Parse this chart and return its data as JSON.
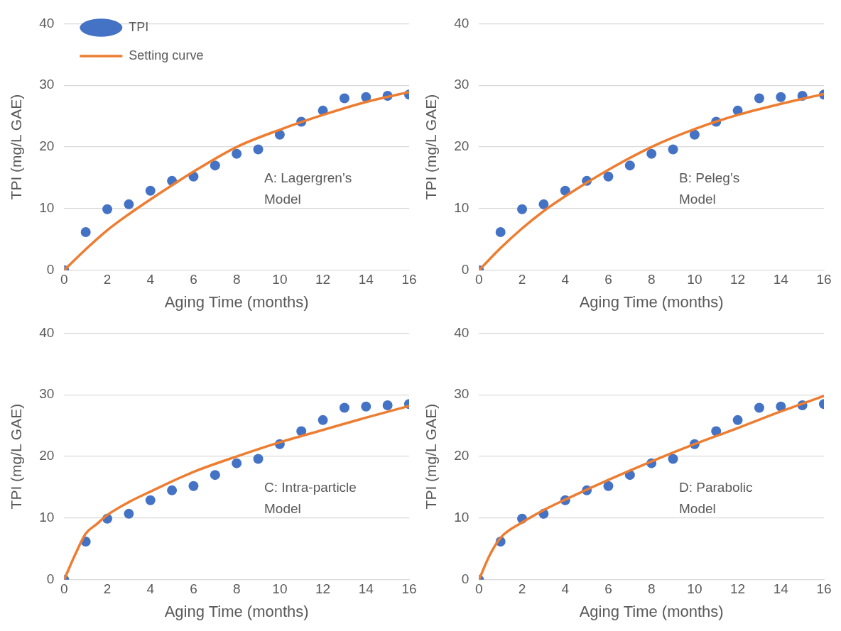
{
  "chart_data": [
    {
      "type": "scatter",
      "xlabel": "Aging Time (months)",
      "ylabel": "TPI (mg/L GAE)",
      "xlim": [
        0,
        16
      ],
      "xticks": [
        0,
        2,
        4,
        6,
        8,
        10,
        12,
        14,
        16
      ],
      "ylim": [
        0,
        40
      ],
      "yticks": [
        0,
        10,
        20,
        30,
        40
      ],
      "grid": "y",
      "legend": "top left",
      "annotations": [
        "A: Lagergren’s Model"
      ],
      "series": [
        {
          "name": "TPI",
          "type": "scatter",
          "marker": "circle",
          "color": "#4472c4",
          "x": [
            0,
            1,
            2,
            3,
            4,
            5,
            6,
            7,
            8,
            9,
            10,
            11,
            12,
            13,
            14,
            15,
            16
          ],
          "values": [
            0,
            6.2,
            9.9,
            10.7,
            12.9,
            14.5,
            15.2,
            17,
            18.9,
            19.6,
            22,
            24.1,
            25.9,
            27.9,
            28.1,
            28.3,
            28.5
          ]
        },
        {
          "name": "Setting curve",
          "type": "line",
          "marker": "none",
          "line_style": "solid",
          "color": "#ed7d31",
          "x": [
            0,
            1,
            2,
            3,
            4,
            6,
            8,
            10,
            12,
            14,
            16
          ],
          "values": [
            0,
            3.4,
            6.5,
            9.1,
            11.5,
            16,
            20,
            22.8,
            25.2,
            27.3,
            28.9
          ]
        }
      ]
    },
    {
      "type": "scatter",
      "xlabel": "Aging Time (months)",
      "ylabel": "TPI (mg/L GAE)",
      "xlim": [
        0,
        16
      ],
      "xticks": [
        0,
        2,
        4,
        6,
        8,
        10,
        12,
        14,
        16
      ],
      "ylim": [
        0,
        40
      ],
      "yticks": [
        0,
        10,
        20,
        30,
        40
      ],
      "grid": "y",
      "annotations": [
        "B: Peleg’s Model"
      ],
      "series": [
        {
          "type": "scatter",
          "marker": "circle",
          "color": "#4472c4",
          "x": [
            0,
            1,
            2,
            3,
            4,
            5,
            6,
            7,
            8,
            9,
            10,
            11,
            12,
            13,
            14,
            15,
            16
          ],
          "values": [
            0,
            6.2,
            9.9,
            10.7,
            12.9,
            14.5,
            15.2,
            17,
            18.9,
            19.6,
            22,
            24.1,
            25.9,
            27.9,
            28.1,
            28.3,
            28.5
          ]
        },
        {
          "type": "line",
          "marker": "none",
          "line_style": "solid",
          "color": "#ed7d31",
          "x": [
            0,
            1,
            2,
            3,
            4,
            6,
            8,
            10,
            12,
            14,
            16
          ],
          "values": [
            0,
            3.6,
            6.8,
            9.6,
            12,
            16.3,
            20,
            22.9,
            25.2,
            27,
            28.6
          ]
        }
      ]
    },
    {
      "type": "scatter",
      "xlabel": "Aging Time (months)",
      "ylabel": "TPI (mg/L GAE)",
      "xlim": [
        0,
        16
      ],
      "xticks": [
        0,
        2,
        4,
        6,
        8,
        10,
        12,
        14,
        16
      ],
      "ylim": [
        0,
        40
      ],
      "yticks": [
        0,
        10,
        20,
        30,
        40
      ],
      "grid": "y",
      "annotations": [
        "C: Intra-particle Model"
      ],
      "series": [
        {
          "type": "scatter",
          "marker": "circle",
          "color": "#4472c4",
          "x": [
            0,
            1,
            2,
            3,
            4,
            5,
            6,
            7,
            8,
            9,
            10,
            11,
            12,
            13,
            14,
            15,
            16
          ],
          "values": [
            0,
            6.2,
            9.9,
            10.7,
            12.9,
            14.5,
            15.2,
            17,
            18.9,
            19.6,
            22,
            24.1,
            25.9,
            27.9,
            28.1,
            28.3,
            28.5
          ]
        },
        {
          "type": "line",
          "marker": "none",
          "line_style": "solid",
          "color": "#ed7d31",
          "x": [
            0,
            0.5,
            1,
            1.5,
            2,
            3,
            4,
            6,
            8,
            10,
            12,
            14,
            16
          ],
          "values": [
            0,
            4,
            7.5,
            9,
            10.5,
            12.6,
            14.3,
            17.5,
            20,
            22.3,
            24.3,
            26.3,
            28.2
          ]
        }
      ]
    },
    {
      "type": "scatter",
      "xlabel": "Aging Time (months)",
      "ylabel": "TPI (mg/L GAE)",
      "xlim": [
        0,
        16
      ],
      "xticks": [
        0,
        2,
        4,
        6,
        8,
        10,
        12,
        14,
        16
      ],
      "ylim": [
        0,
        40
      ],
      "yticks": [
        0,
        10,
        20,
        30,
        40
      ],
      "grid": "y",
      "annotations": [
        "D: Parabolic Model"
      ],
      "series": [
        {
          "type": "scatter",
          "marker": "circle",
          "color": "#4472c4",
          "x": [
            0,
            1,
            2,
            3,
            4,
            5,
            6,
            7,
            8,
            9,
            10,
            11,
            12,
            13,
            14,
            15,
            16
          ],
          "values": [
            0,
            6.2,
            9.9,
            10.7,
            12.9,
            14.5,
            15.2,
            17,
            18.9,
            19.6,
            22,
            24.1,
            25.9,
            27.9,
            28.1,
            28.3,
            28.5
          ]
        },
        {
          "type": "line",
          "marker": "none",
          "line_style": "solid",
          "color": "#ed7d31",
          "x": [
            0,
            0.5,
            1,
            2,
            3,
            4,
            6,
            8,
            10,
            12,
            14,
            16
          ],
          "values": [
            0,
            4,
            6.8,
            9.3,
            11.3,
            13,
            16.2,
            19.2,
            22,
            24.6,
            27.3,
            29.8
          ]
        }
      ]
    }
  ]
}
